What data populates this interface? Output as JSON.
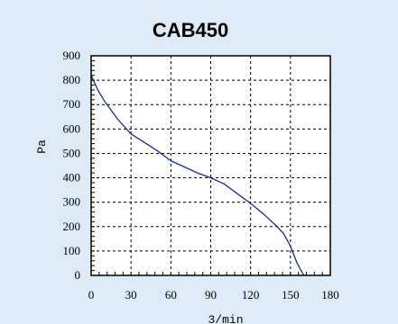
{
  "chart_data": {
    "type": "line",
    "title": "CAB450",
    "xlabel": "3/min",
    "ylabel": "Pa",
    "xlim": [
      0,
      180
    ],
    "ylim": [
      0,
      900
    ],
    "xticks": [
      "0",
      "30",
      "60",
      "90",
      "120",
      "150",
      "180"
    ],
    "yticks": [
      "0",
      "100",
      "200",
      "300",
      "400",
      "500",
      "600",
      "700",
      "800",
      "900"
    ],
    "grid": true,
    "series": [
      {
        "color": "#1a2a8a",
        "x": [
          0,
          5,
          10,
          20,
          30,
          40,
          50,
          60,
          70,
          80,
          90,
          100,
          110,
          120,
          130,
          140,
          145,
          150,
          155,
          160
        ],
        "y": [
          820,
          760,
          715,
          640,
          580,
          545,
          510,
          470,
          445,
          420,
          400,
          375,
          335,
          295,
          250,
          200,
          170,
          120,
          50,
          0
        ]
      }
    ],
    "colors": {
      "background": "#dcebf5",
      "plot_bg": "#ffffff",
      "line": "#1a2a8a",
      "grid": "#000000"
    }
  }
}
